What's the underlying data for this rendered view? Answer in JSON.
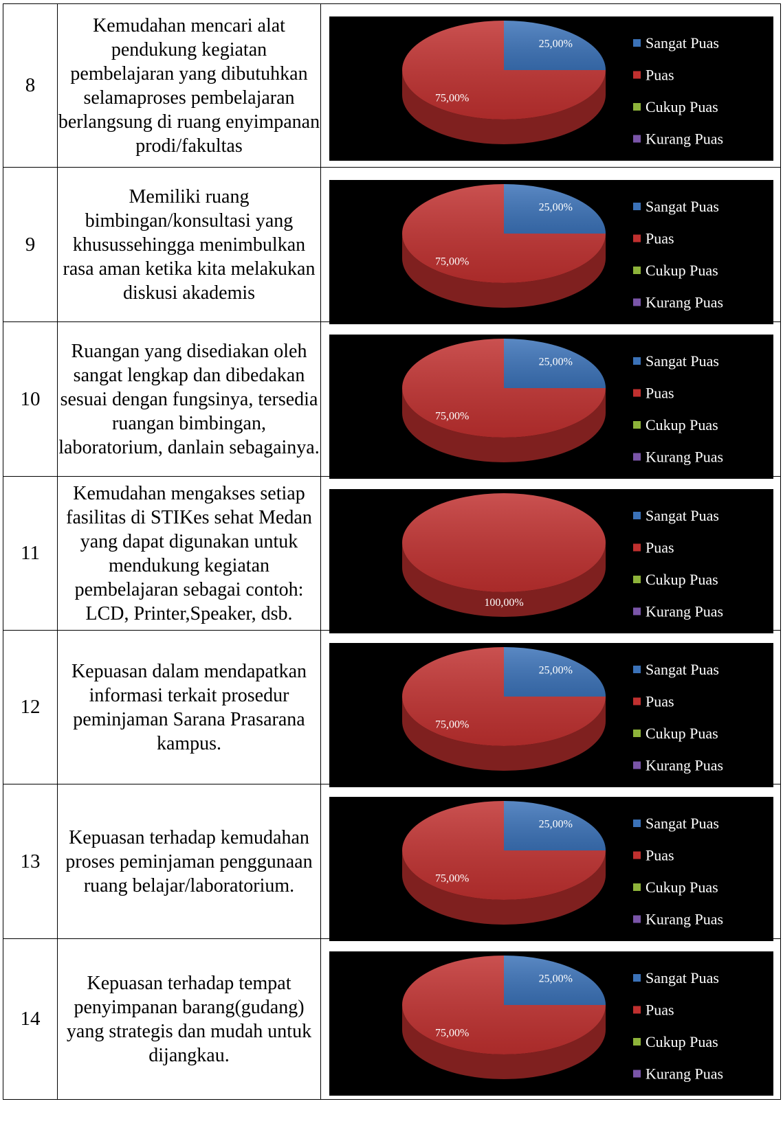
{
  "legend": [
    "Sangat Puas",
    "Puas",
    "Cukup Puas",
    "Kurang Puas"
  ],
  "colors": {
    "Sangat Puas": "#3b72b8",
    "Puas": "#c0302f",
    "Cukup Puas": "#8db33a",
    "Kurang Puas": "#7a55a8",
    "background": "#000000"
  },
  "rows": [
    {
      "no": "8",
      "text": "Kemudahan mencari alat pendukung kegiatan pembelajaran yang dibutuhkan selamaproses pembelajaran berlangsung di ruang enyimpanan prodi/fakultas"
    },
    {
      "no": "9",
      "text": "Memiliki ruang bimbingan/konsultasi yang khusussehingga menimbulkan rasa aman ketika kita melakukan diskusi akademis"
    },
    {
      "no": "10",
      "text": "Ruangan yang disediakan oleh sangat lengkap dan dibedakan sesuai dengan fungsinya, tersedia ruangan bimbingan, laboratorium, danlain sebagainya."
    },
    {
      "no": "11",
      "text": "Kemudahan mengakses setiap fasilitas di STIKes sehat Medan yang dapat digunakan untuk mendukung kegiatan pembelajaran sebagai contoh: LCD, Printer,Speaker, dsb."
    },
    {
      "no": "12",
      "text": "Kepuasan dalam mendapatkan informasi terkait prosedur peminjaman Sarana Prasarana kampus."
    },
    {
      "no": "13",
      "text": "Kepuasan terhadap kemudahan proses peminjaman penggunaan ruang belajar/laboratorium."
    },
    {
      "no": "14",
      "text": "Kepuasan terhadap tempat penyimpanan barang(gudang) yang strategis dan mudah untuk dijangkau."
    }
  ],
  "chart_data": [
    {
      "type": "pie",
      "row": "8",
      "categories": [
        "Sangat Puas",
        "Puas",
        "Cukup Puas",
        "Kurang Puas"
      ],
      "values": [
        25,
        75,
        0,
        0
      ],
      "labels": [
        "25,00%",
        "75,00%",
        "",
        ""
      ],
      "legend_position": "right"
    },
    {
      "type": "pie",
      "row": "9",
      "categories": [
        "Sangat Puas",
        "Puas",
        "Cukup Puas",
        "Kurang Puas"
      ],
      "values": [
        25,
        75,
        0,
        0
      ],
      "labels": [
        "25,00%",
        "75,00%",
        "",
        ""
      ],
      "legend_position": "right"
    },
    {
      "type": "pie",
      "row": "10",
      "categories": [
        "Sangat Puas",
        "Puas",
        "Cukup Puas",
        "Kurang Puas"
      ],
      "values": [
        25,
        75,
        0,
        0
      ],
      "labels": [
        "25,00%",
        "75,00%",
        "",
        ""
      ],
      "legend_position": "right"
    },
    {
      "type": "pie",
      "row": "11",
      "categories": [
        "Sangat Puas",
        "Puas",
        "Cukup Puas",
        "Kurang Puas"
      ],
      "values": [
        0,
        100,
        0,
        0
      ],
      "labels": [
        "",
        "100,00%",
        "",
        ""
      ],
      "legend_position": "right"
    },
    {
      "type": "pie",
      "row": "12",
      "categories": [
        "Sangat Puas",
        "Puas",
        "Cukup Puas",
        "Kurang Puas"
      ],
      "values": [
        25,
        75,
        0,
        0
      ],
      "labels": [
        "25,00%",
        "75,00%",
        "",
        ""
      ],
      "legend_position": "right"
    },
    {
      "type": "pie",
      "row": "13",
      "categories": [
        "Sangat Puas",
        "Puas",
        "Cukup Puas",
        "Kurang Puas"
      ],
      "values": [
        25,
        75,
        0,
        0
      ],
      "labels": [
        "25,00%",
        "75,00%",
        "",
        ""
      ],
      "legend_position": "right"
    },
    {
      "type": "pie",
      "row": "14",
      "categories": [
        "Sangat Puas",
        "Puas",
        "Cukup Puas",
        "Kurang Puas"
      ],
      "values": [
        25,
        75,
        0,
        0
      ],
      "labels": [
        "25,00%",
        "75,00%",
        "",
        ""
      ],
      "legend_position": "right"
    }
  ]
}
